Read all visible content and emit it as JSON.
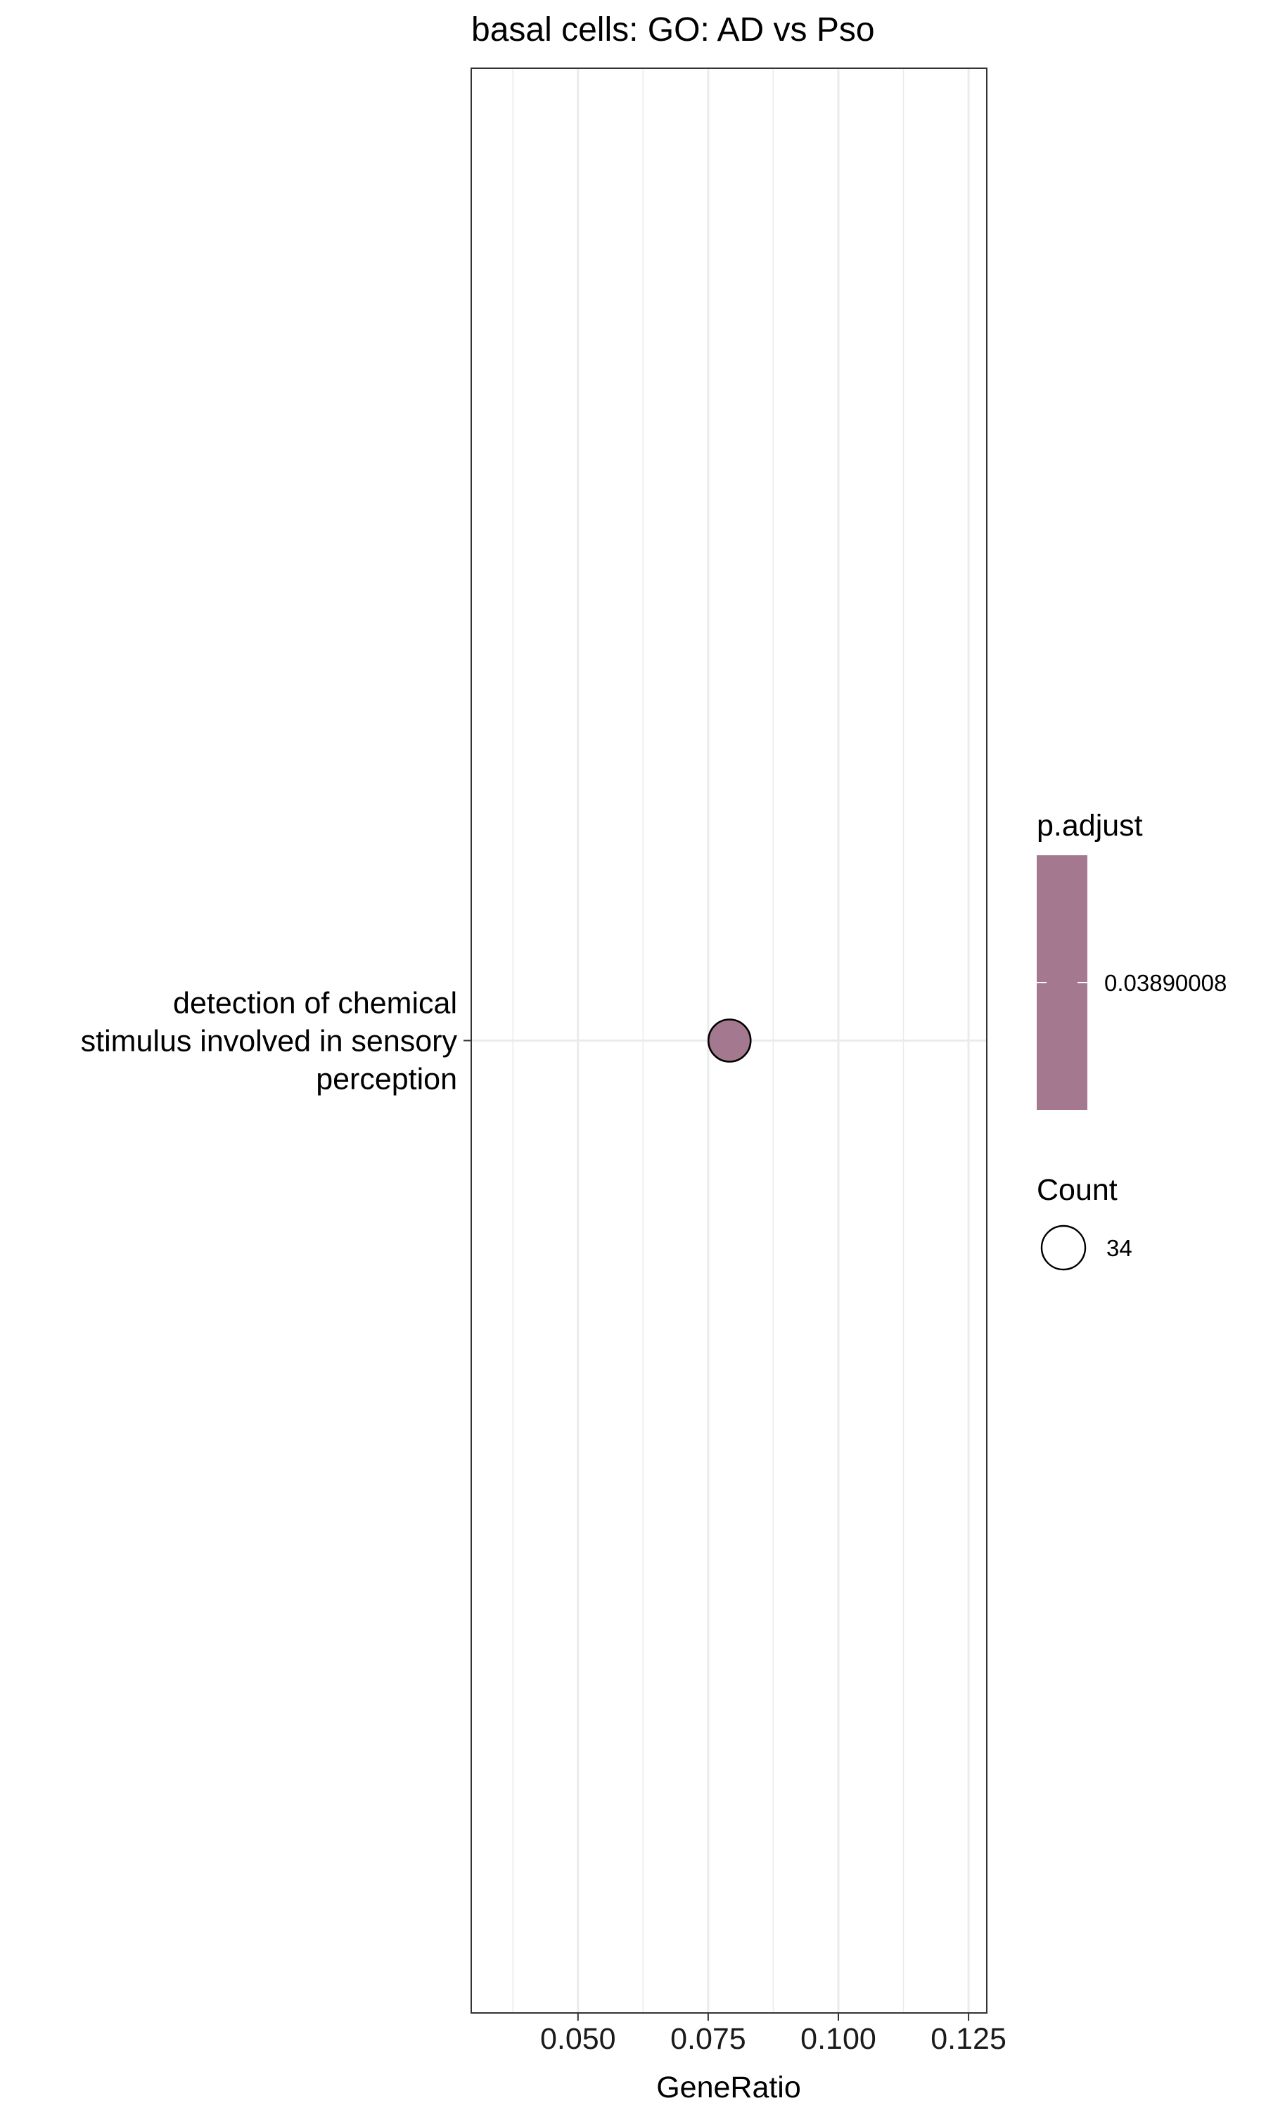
{
  "chart_data": {
    "type": "scatter",
    "title": "basal cells: GO: AD vs Pso",
    "xlabel": "GeneRatio",
    "ylabel": "",
    "xlim": [
      0.0295,
      0.1285
    ],
    "x_ticks": [
      0.05,
      0.075,
      0.1,
      0.125
    ],
    "x_tick_labels": [
      "0.050",
      "0.075",
      "0.100",
      "0.125"
    ],
    "grid": true,
    "categories": [
      "detection of chemical stimulus involved in sensory perception"
    ],
    "category_label_lines": [
      [
        "detection of chemical",
        "stimulus involved in sensory",
        "perception"
      ]
    ],
    "points": [
      {
        "category": "detection of chemical stimulus involved in sensory perception",
        "x": 0.0791,
        "count": 34,
        "p_adjust": 0.03890008
      }
    ],
    "legend_placement": "right",
    "color_legend": {
      "title": "p.adjust",
      "labels": [
        "0.03890008"
      ],
      "color": "#a4798f"
    },
    "size_legend": {
      "title": "Count",
      "labels": [
        "34"
      ]
    }
  }
}
